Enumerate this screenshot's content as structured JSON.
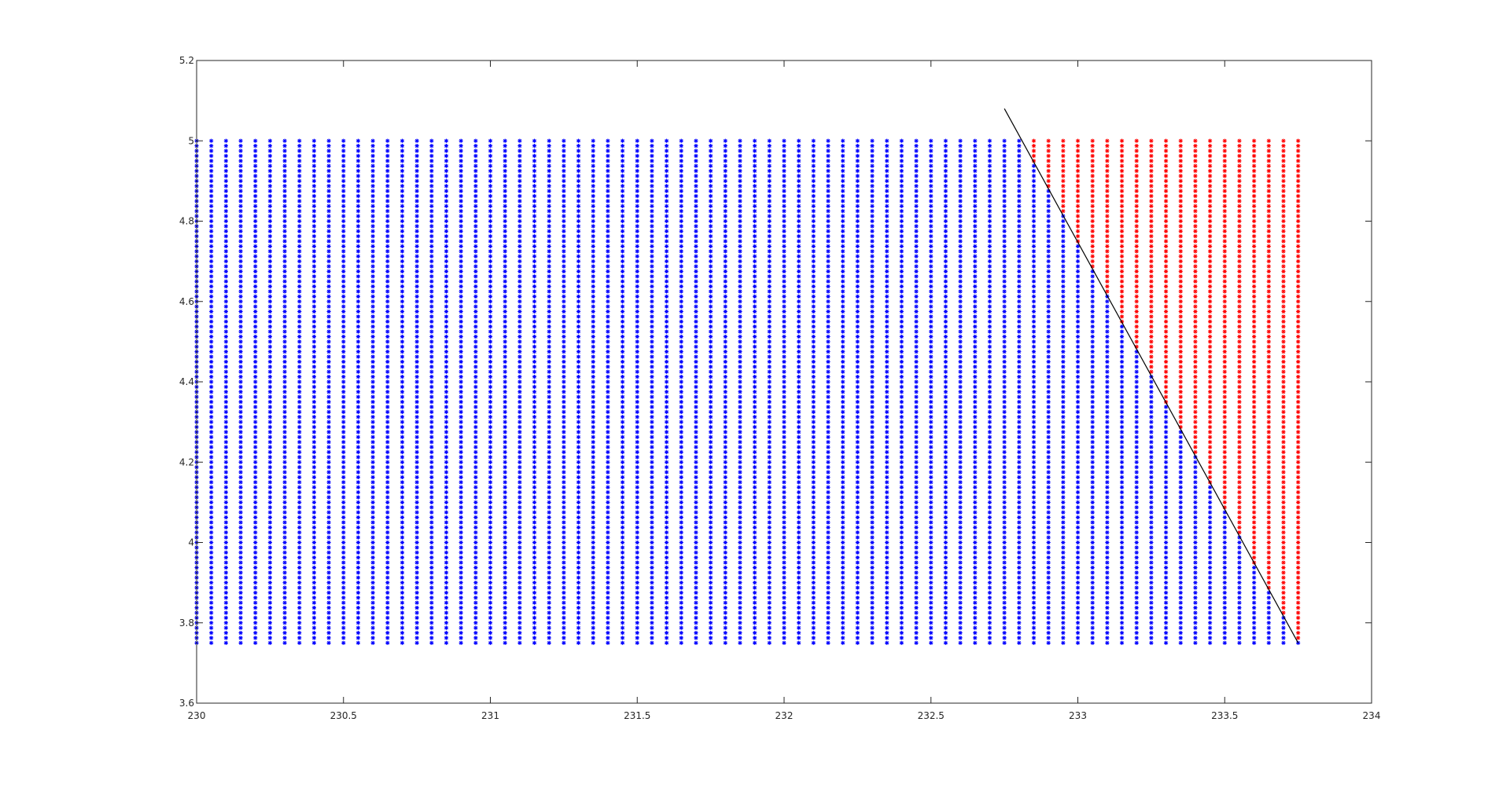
{
  "chart_data": {
    "type": "scatter",
    "title": "",
    "xlabel": "",
    "ylabel": "",
    "xlim": [
      230,
      234
    ],
    "ylim": [
      3.6,
      5.2
    ],
    "x_ticks": [
      "230",
      "230.5",
      "231",
      "231.5",
      "232",
      "232.5",
      "233",
      "233.5",
      "234"
    ],
    "y_ticks": [
      "3.6",
      "3.8",
      "4",
      "4.2",
      "4.4",
      "4.6",
      "4.8",
      "5",
      "5.2"
    ],
    "grid": false,
    "marker": "asterisk",
    "point_grid": {
      "x_start": 230,
      "x_end": 233.75,
      "x_step": 0.05,
      "y_start": 3.75,
      "y_end": 5.0,
      "y_step": 0.0125
    },
    "series": [
      {
        "color": "#0000ff",
        "region": "left-of-boundary"
      },
      {
        "color": "#ff0000",
        "region": "right-of-boundary"
      }
    ],
    "boundary_line": {
      "x": [
        232.75,
        233.75
      ],
      "y": [
        5.08,
        3.75
      ],
      "color": "#000000"
    }
  }
}
